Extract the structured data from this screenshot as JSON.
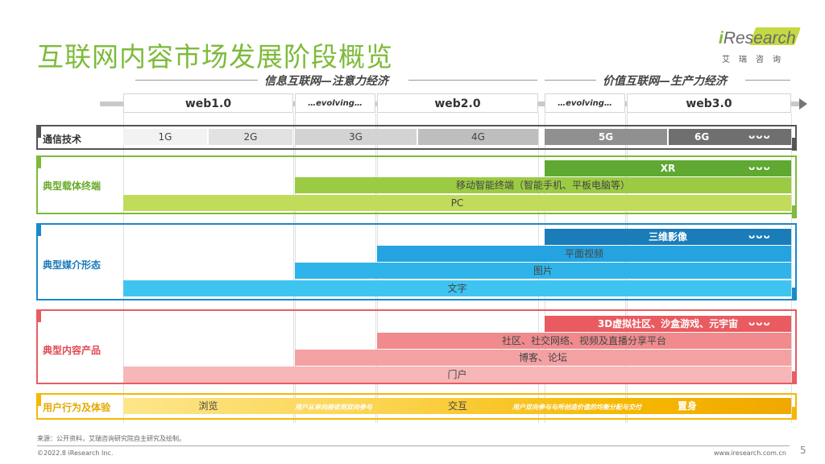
{
  "title": "互联网内容市场发展阶段概览",
  "logo": {
    "word_i": "i",
    "word_rest": "Research",
    "sub": "艾瑞咨询"
  },
  "eras": {
    "left": "信息互联网—注意力经济",
    "right": "价值互联网—生产力经济"
  },
  "columns": [
    "web1.0",
    "…evolving…",
    "web2.0",
    "…evolving…",
    "web3.0"
  ],
  "rows": {
    "comm": {
      "label": "通信技术",
      "cells": [
        "1G",
        "2G",
        "3G",
        "4G",
        "5G",
        "6G"
      ],
      "more": "ᴗᴗᴗ"
    },
    "terminal": {
      "label": "典型载体终端",
      "bars": [
        "XR",
        "移动智能终端（智能手机、平板电脑等）",
        "PC"
      ],
      "more": "ᴗᴗᴗ"
    },
    "media": {
      "label": "典型媒介形态",
      "bars": [
        "三维影像",
        "平面视频",
        "图片",
        "文字"
      ],
      "more": "ᴗᴗᴗ"
    },
    "content": {
      "label": "典型内容产品",
      "bars": [
        "3D虚拟社区、沙盒游戏、元宇宙",
        "社区、社交网络、视频及直播分享平台",
        "博客、论坛",
        "门户"
      ],
      "more": "ᴗᴗᴗ"
    },
    "behavior": {
      "label": "用户行为及体验",
      "stages": [
        "浏览",
        "交互",
        "置身"
      ],
      "transitions": [
        "用户从单向接收到双向参与",
        "用户双向参与与所创造价值的均衡分配与交付"
      ]
    }
  },
  "colors": {
    "green": "#7dbb3a",
    "blue": "#1a8ac8",
    "red": "#ea5c63",
    "orange": "#f5b800",
    "gray": "#444444"
  },
  "footer": {
    "source": "来源：公开资料，艾瑞咨询研究院自主研究及绘制。",
    "copyright": "©2022.8 iResearch Inc.",
    "url": "www.iresearch.com.cn",
    "page": "5"
  }
}
